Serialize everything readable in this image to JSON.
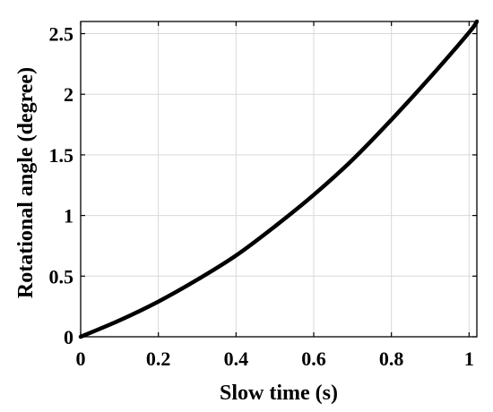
{
  "chart_data": {
    "type": "line",
    "xlabel": "Slow time (s)",
    "ylabel": "Rotational angle (degree)",
    "xlim": [
      0,
      1.02
    ],
    "ylim": [
      0,
      2.6
    ],
    "xticks": [
      0,
      0.2,
      0.4,
      0.6,
      0.8,
      1
    ],
    "xtick_labels": [
      "0",
      "0.2",
      "0.4",
      "0.6",
      "0.8",
      "1"
    ],
    "yticks": [
      0,
      0.5,
      1,
      1.5,
      2,
      2.5
    ],
    "ytick_labels": [
      "0",
      "0.5",
      "1",
      "1.5",
      "2",
      "2.5"
    ],
    "grid": true,
    "line_color": "#000000",
    "series": [
      {
        "x": [
          0,
          0.1,
          0.2,
          0.3,
          0.4,
          0.5,
          0.6,
          0.7,
          0.8,
          0.9,
          1.0,
          1.02
        ],
        "y": [
          0,
          0.135,
          0.29,
          0.47,
          0.67,
          0.91,
          1.17,
          1.46,
          1.79,
          2.14,
          2.51,
          2.6
        ]
      }
    ]
  }
}
